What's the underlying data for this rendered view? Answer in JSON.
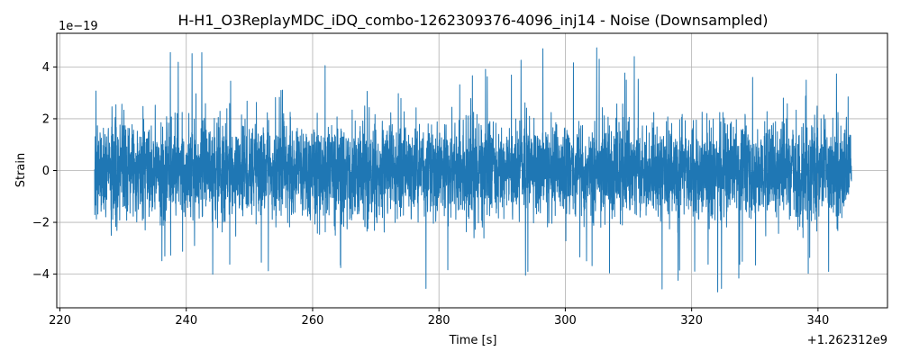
{
  "chart_data": {
    "type": "line",
    "title": "H-H1_O3ReplayMDC_iDQ_combo-1262309376-4096_inj14 - Noise (Downsampled)",
    "xlabel": "Time [s]",
    "ylabel": "Strain",
    "x_offset_label": "+1.262312e9",
    "y_scale_label": "1e−19",
    "xlim": [
      219.5,
      351.0
    ],
    "ylim": [
      -5.3,
      5.3
    ],
    "x_ticks": [
      220,
      240,
      260,
      280,
      300,
      320,
      340
    ],
    "x_tick_labels": [
      "220",
      "240",
      "260",
      "280",
      "300",
      "320",
      "340"
    ],
    "y_ticks": [
      -4,
      -2,
      0,
      2,
      4
    ],
    "y_tick_labels": [
      "−4",
      "−2",
      "0",
      "2",
      "4"
    ],
    "grid": true,
    "color": "#1f77b4",
    "series": [
      {
        "x_range": [
          225.5,
          345.3
        ],
        "envelope": {
          "max_values": [
            3.2,
            4.6,
            3.5,
            4.1,
            3.8,
            3.7,
            4.6,
            4.8,
            4.5,
            4.4,
            4.3,
            4.2
          ],
          "min_values": [
            -3.2,
            -4.1,
            -4.4,
            -3.9,
            -4.1,
            -4.6,
            -4.5,
            -4.2,
            -4.9,
            -4.7,
            -4.4,
            -4.2
          ],
          "typical_amplitude": 1.5
        }
      }
    ]
  }
}
